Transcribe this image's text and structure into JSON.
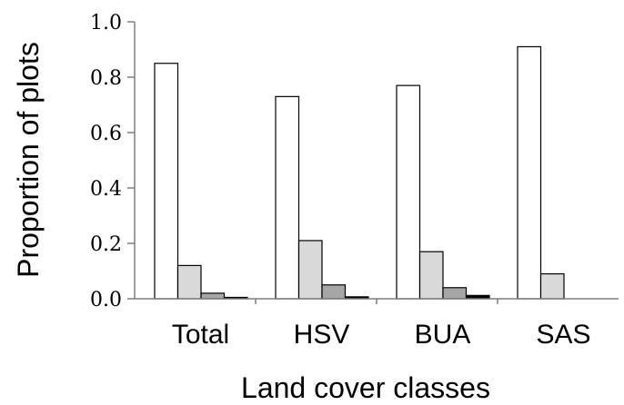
{
  "chart_data": {
    "type": "bar",
    "title": "",
    "xlabel": "Land cover classes",
    "ylabel": "Proportion of plots",
    "ylim": [
      0,
      1.0
    ],
    "yticks": [
      "0.0",
      "0.2",
      "0.4",
      "0.6",
      "0.8",
      "1.0"
    ],
    "grid": false,
    "legend": "none",
    "categories": [
      "Total",
      "HSV",
      "BUA",
      "SAS"
    ],
    "series": [
      {
        "color": "#ffffff",
        "values": [
          0.85,
          0.73,
          0.77,
          0.91
        ]
      },
      {
        "color": "#d9d9d9",
        "values": [
          0.12,
          0.21,
          0.17,
          0.09
        ]
      },
      {
        "color": "#a6a6a6",
        "values": [
          0.02,
          0.05,
          0.04,
          0
        ]
      },
      {
        "color": "#000000",
        "values": [
          0.005,
          0.007,
          0.012,
          0
        ]
      }
    ]
  }
}
